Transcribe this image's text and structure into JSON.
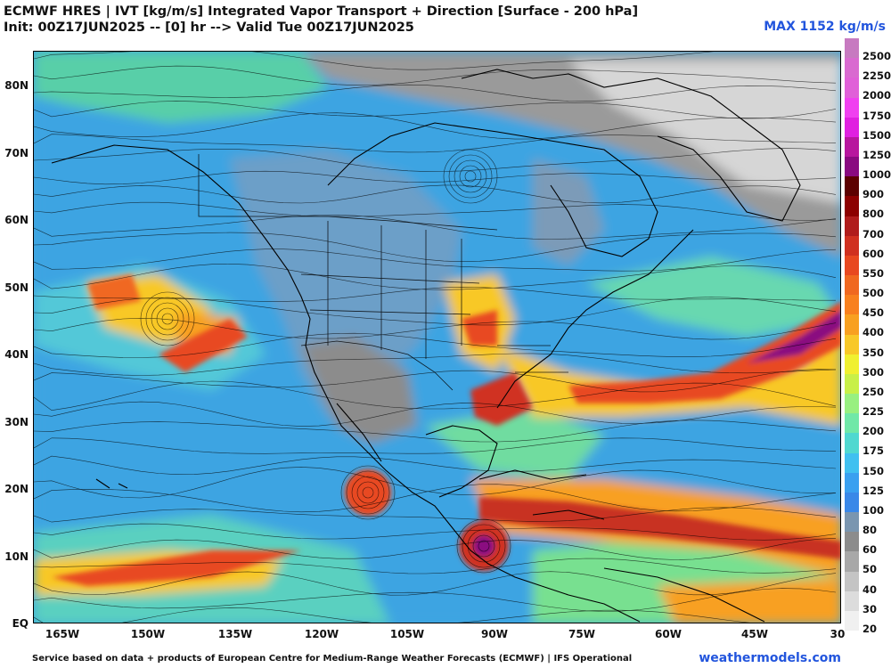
{
  "header": {
    "title_line1": "ECMWF HRES | IVT [kg/m/s] Integrated Vapor Transport + Direction [Surface - 200 hPa]",
    "title_line2": "Init: 00Z17JUN2025 -- [0] hr --> Valid Tue 00Z17JUN2025",
    "max_label": "MAX 1152 kg/m/s"
  },
  "axes": {
    "lat_labels": [
      "80N",
      "70N",
      "60N",
      "50N",
      "40N",
      "30N",
      "20N",
      "10N",
      "EQ"
    ],
    "lon_labels": [
      "165W",
      "150W",
      "135W",
      "120W",
      "105W",
      "90W",
      "75W",
      "60W",
      "45W",
      "30"
    ]
  },
  "colorbar": {
    "levels": [
      "2500",
      "2250",
      "2000",
      "1750",
      "1500",
      "1250",
      "1000",
      "900",
      "800",
      "700",
      "600",
      "550",
      "500",
      "450",
      "400",
      "350",
      "300",
      "250",
      "225",
      "200",
      "175",
      "150",
      "125",
      "100",
      "80",
      "60",
      "50",
      "40",
      "30",
      "20"
    ],
    "colors": [
      "#c77ac0",
      "#d96ad0",
      "#e060d8",
      "#f040f0",
      "#e020e0",
      "#b8169e",
      "#8a0a80",
      "#5c0000",
      "#8c0000",
      "#b01c1c",
      "#d03020",
      "#e84820",
      "#f06820",
      "#f8801e",
      "#f8a020",
      "#f8c828",
      "#f0f030",
      "#c8f048",
      "#98f080",
      "#70e8a8",
      "#50d8d0",
      "#40c0f0",
      "#3aa0f0",
      "#3a88e8",
      "#7a96b0",
      "#8c8c8c",
      "#a8a8a8",
      "#c4c4c4",
      "#dcdcdc",
      "#f0f0f0"
    ]
  },
  "footer": {
    "credit": "Service based on data + products of European Centre for Medium-Range Weather Forecasts (ECMWF) | IFS Operational",
    "site": "weathermodels.com"
  }
}
